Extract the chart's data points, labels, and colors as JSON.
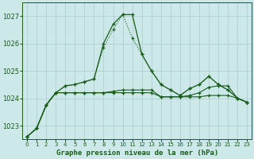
{
  "title": "Graphe pression niveau de la mer (hPa)",
  "background_color": "#cce8e8",
  "grid_color": "#aacccc",
  "line_color": "#1a5c1a",
  "xlim": [
    -0.5,
    23.5
  ],
  "ylim": [
    1022.5,
    1027.5
  ],
  "yticks": [
    1023,
    1024,
    1025,
    1026,
    1027
  ],
  "xtick_labels": [
    "0",
    "1",
    "2",
    "3",
    "4",
    "5",
    "6",
    "7",
    "8",
    "9",
    "10",
    "11",
    "12",
    "13",
    "14",
    "15",
    "16",
    "17",
    "18",
    "19",
    "20",
    "21",
    "22",
    "23"
  ],
  "series_dotted": [
    1022.6,
    1022.9,
    1023.75,
    1024.2,
    1024.45,
    1024.5,
    1024.6,
    1024.7,
    1025.85,
    1026.5,
    1027.05,
    1026.2,
    1025.6,
    1025.0,
    1024.5,
    1024.3,
    1024.1,
    1024.35,
    1024.5,
    1024.8,
    1024.5,
    1024.3,
    1024.0,
    1023.85
  ],
  "series_solid_peak": [
    1022.6,
    1022.9,
    1023.75,
    1024.2,
    1024.45,
    1024.5,
    1024.6,
    1024.7,
    1026.0,
    1026.7,
    1027.05,
    1027.05,
    1025.6,
    1025.0,
    1024.5,
    1024.3,
    1024.1,
    1024.35,
    1024.5,
    1024.8,
    1024.5,
    1024.3,
    1024.0,
    1023.85
  ],
  "series_flat1": [
    1022.6,
    1022.9,
    1023.75,
    1024.2,
    1024.2,
    1024.2,
    1024.2,
    1024.2,
    1024.2,
    1024.25,
    1024.3,
    1024.3,
    1024.3,
    1024.3,
    1024.05,
    1024.05,
    1024.05,
    1024.1,
    1024.2,
    1024.4,
    1024.45,
    1024.45,
    1024.0,
    1023.85
  ],
  "series_flat2": [
    1022.6,
    1022.9,
    1023.75,
    1024.2,
    1024.2,
    1024.2,
    1024.2,
    1024.2,
    1024.2,
    1024.2,
    1024.2,
    1024.2,
    1024.2,
    1024.2,
    1024.05,
    1024.05,
    1024.05,
    1024.05,
    1024.05,
    1024.1,
    1024.1,
    1024.1,
    1024.0,
    1023.85
  ],
  "figwidth": 3.2,
  "figheight": 2.0,
  "dpi": 100
}
